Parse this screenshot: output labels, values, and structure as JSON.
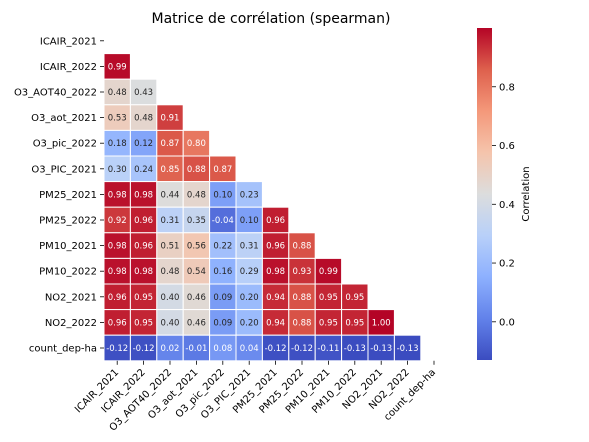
{
  "chart_data": {
    "type": "heatmap",
    "title": "Matrice de corrélation (spearman)",
    "variables": [
      "ICAIR_2021",
      "ICAIR_2022",
      "O3_AOT40_2022",
      "O3_aot_2021",
      "O3_pic_2022",
      "O3_PIC_2021",
      "PM25_2021",
      "PM25_2022",
      "PM10_2021",
      "PM10_2022",
      "NO2_2021",
      "NO2_2022",
      "count_dep-ha"
    ],
    "mask": "upper-triangle-including-diagonal",
    "matrix": [
      [],
      [
        0.99
      ],
      [
        0.48,
        0.43
      ],
      [
        0.53,
        0.48,
        0.91
      ],
      [
        0.18,
        0.12,
        0.87,
        0.8
      ],
      [
        0.3,
        0.24,
        0.85,
        0.88,
        0.87
      ],
      [
        0.98,
        0.98,
        0.44,
        0.48,
        0.1,
        0.23
      ],
      [
        0.92,
        0.96,
        0.31,
        0.35,
        -0.04,
        0.1,
        0.96
      ],
      [
        0.98,
        0.96,
        0.51,
        0.56,
        0.22,
        0.31,
        0.96,
        0.88
      ],
      [
        0.98,
        0.98,
        0.48,
        0.54,
        0.16,
        0.29,
        0.98,
        0.93,
        0.99
      ],
      [
        0.96,
        0.95,
        0.4,
        0.46,
        0.09,
        0.2,
        0.94,
        0.88,
        0.95,
        0.95
      ],
      [
        0.96,
        0.95,
        0.4,
        0.46,
        0.09,
        0.2,
        0.94,
        0.88,
        0.95,
        0.95,
        1.0
      ],
      [
        -0.12,
        -0.12,
        0.02,
        -0.01,
        0.08,
        0.04,
        -0.12,
        -0.12,
        -0.11,
        -0.13,
        -0.13,
        -0.13
      ]
    ],
    "cell_labels": [
      [],
      [
        "0.99"
      ],
      [
        "0.48",
        "0.43"
      ],
      [
        "0.53",
        "0.48",
        "0.91"
      ],
      [
        "0.18",
        "0.12",
        "0.87",
        "0.80"
      ],
      [
        "0.30",
        "0.24",
        "0.85",
        "0.88",
        "0.87"
      ],
      [
        "0.98",
        "0.98",
        "0.44",
        "0.48",
        "0.10",
        "0.23"
      ],
      [
        "0.92",
        "0.96",
        "0.31",
        "0.35",
        "-0.04",
        "0.10",
        "0.96"
      ],
      [
        "0.98",
        "0.96",
        "0.51",
        "0.56",
        "0.22",
        "0.31",
        "0.96",
        "0.88"
      ],
      [
        "0.98",
        "0.98",
        "0.48",
        "0.54",
        "0.16",
        "0.29",
        "0.98",
        "0.93",
        "0.99"
      ],
      [
        "0.96",
        "0.95",
        "0.40",
        "0.46",
        "0.09",
        "0.20",
        "0.94",
        "0.88",
        "0.95",
        "0.95"
      ],
      [
        "0.96",
        "0.95",
        "0.40",
        "0.46",
        "0.09",
        "0.20",
        "0.94",
        "0.88",
        "0.95",
        "0.95",
        "1.00"
      ],
      [
        "-0.12",
        "-0.12",
        "0.02",
        "-0.01",
        "0.08",
        "0.04",
        "-0.12",
        "-0.12",
        "-0.11",
        "-0.13",
        "-0.13",
        "-0.13"
      ]
    ],
    "colorbar": {
      "label": "Correlation",
      "vmin": -0.13,
      "vmax": 1.0,
      "ticks": [
        0.0,
        0.2,
        0.4,
        0.6,
        0.8
      ],
      "tick_labels": [
        "0.0",
        "0.2",
        "0.4",
        "0.6",
        "0.8"
      ],
      "colormap": "coolwarm",
      "colors": [
        "#3b4cc0",
        "#6282ea",
        "#8db0fe",
        "#b8d0f9",
        "#dcdddd",
        "#f5c4ac",
        "#f4987a",
        "#de604d",
        "#b40426"
      ]
    },
    "grid": false,
    "legend": "right"
  }
}
